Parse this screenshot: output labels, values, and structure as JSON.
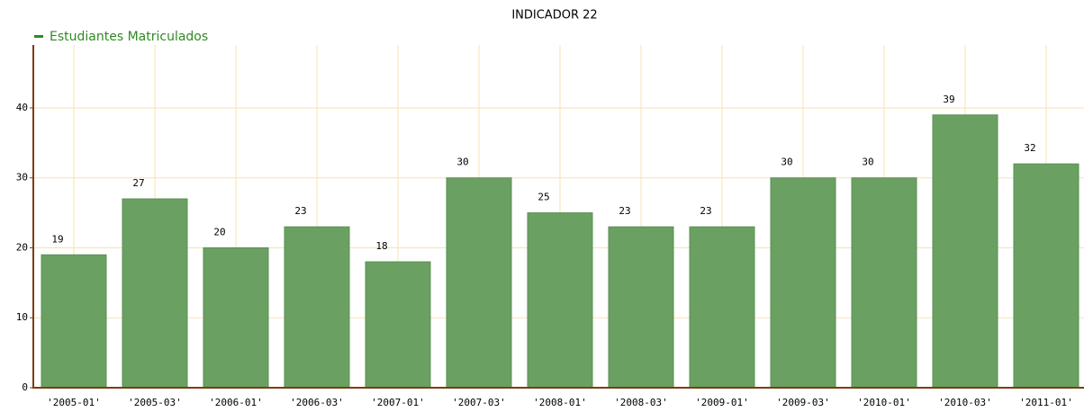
{
  "chart_data": {
    "type": "bar",
    "title": "INDICADOR 22",
    "series": [
      {
        "name": "Estudiantes Matriculados",
        "color": "#6aa062",
        "values": [
          19,
          27,
          20,
          23,
          18,
          30,
          25,
          23,
          23,
          30,
          30,
          39,
          32
        ]
      }
    ],
    "categories": [
      "'2005-01'",
      "'2005-03'",
      "'2006-01'",
      "'2006-03'",
      "'2007-01'",
      "'2007-03'",
      "'2008-01'",
      "'2008-03'",
      "'2009-01'",
      "'2009-03'",
      "'2010-01'",
      "'2010-03'",
      "'2011-01'"
    ],
    "ylim": [
      0,
      49
    ],
    "yticks": [
      0,
      10,
      20,
      30,
      40
    ],
    "grid": true,
    "legend": "top-left"
  }
}
